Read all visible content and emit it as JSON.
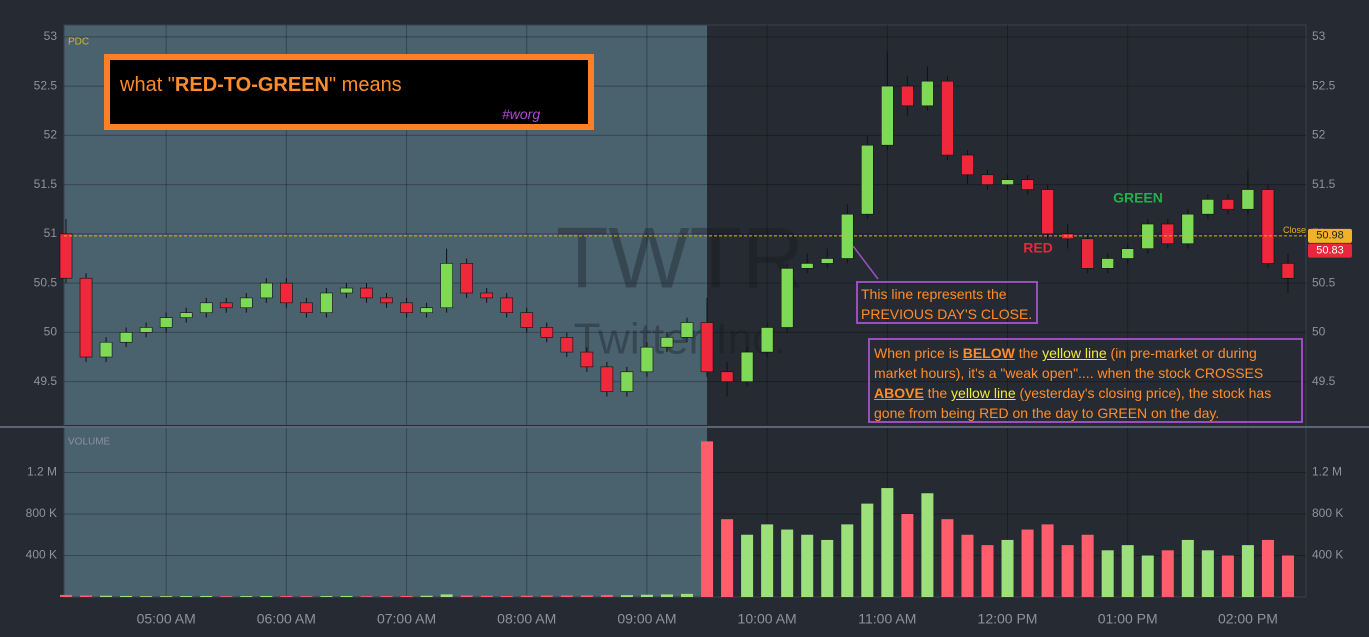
{
  "chart_data": {
    "type": "candlestick",
    "title_prefix": "what \"",
    "title_bold": "RED-TO-GREEN",
    "title_suffix": "\" means",
    "tag": "#worg",
    "watermark_symbol": "TWTR",
    "watermark_name": "Twitter Inc.",
    "price_label": "PDC",
    "volume_label": "VOLUME",
    "xlim": [
      249,
      869
    ],
    "xticks": [
      {
        "value": 300,
        "label": "05:00 AM"
      },
      {
        "value": 360,
        "label": "06:00 AM"
      },
      {
        "value": 420,
        "label": "07:00 AM"
      },
      {
        "value": 480,
        "label": "08:00 AM"
      },
      {
        "value": 540,
        "label": "09:00 AM"
      },
      {
        "value": 600,
        "label": "10:00 AM"
      },
      {
        "value": 660,
        "label": "11:00 AM"
      },
      {
        "value": 720,
        "label": "12:00 PM"
      },
      {
        "value": 780,
        "label": "01:00 PM"
      },
      {
        "value": 840,
        "label": "02:00 PM"
      }
    ],
    "ylim": [
      49.06,
      53.12
    ],
    "yticks": [
      49.5,
      50,
      50.5,
      51,
      51.5,
      52,
      52.5,
      53
    ],
    "grid": true,
    "shaded_until": 570,
    "up_color": "#7ed957",
    "down_color": "#f0283c",
    "candles": {
      "x": [
        250,
        260,
        270,
        280,
        290,
        300,
        310,
        320,
        330,
        340,
        350,
        360,
        370,
        380,
        390,
        400,
        410,
        420,
        430,
        440,
        450,
        460,
        470,
        480,
        490,
        500,
        510,
        520,
        530,
        540,
        550,
        560,
        570,
        580,
        590,
        600,
        610,
        620,
        630,
        640,
        650,
        660,
        670,
        680,
        690,
        700,
        710,
        720,
        730,
        740,
        750,
        760,
        770,
        780,
        790,
        800,
        810,
        820,
        830,
        840,
        850,
        860
      ],
      "open": [
        51.0,
        50.55,
        49.75,
        49.9,
        50.0,
        50.05,
        50.15,
        50.2,
        50.3,
        50.25,
        50.35,
        50.5,
        50.3,
        50.2,
        50.4,
        50.45,
        50.35,
        50.3,
        50.2,
        50.25,
        50.7,
        50.4,
        50.35,
        50.2,
        50.05,
        49.95,
        49.8,
        49.65,
        49.4,
        49.6,
        49.85,
        49.95,
        50.1,
        49.6,
        49.5,
        49.8,
        50.05,
        50.65,
        50.7,
        50.75,
        51.2,
        51.9,
        52.5,
        52.3,
        52.55,
        51.8,
        51.6,
        51.5,
        51.55,
        51.45,
        51.0,
        50.95,
        50.65,
        50.75,
        50.85,
        51.1,
        50.9,
        51.2,
        51.35,
        51.25,
        51.45,
        50.7
      ],
      "high": [
        51.15,
        50.6,
        49.95,
        50.05,
        50.1,
        50.2,
        50.25,
        50.35,
        50.35,
        50.4,
        50.55,
        50.55,
        50.35,
        50.45,
        50.5,
        50.5,
        50.4,
        50.35,
        50.3,
        50.85,
        50.75,
        50.45,
        50.4,
        50.25,
        50.1,
        50.0,
        49.85,
        49.7,
        49.65,
        49.9,
        50.0,
        50.15,
        50.35,
        49.7,
        49.85,
        50.1,
        50.7,
        50.8,
        50.85,
        51.3,
        52.0,
        52.85,
        52.6,
        52.7,
        52.6,
        51.85,
        51.65,
        51.6,
        51.6,
        51.5,
        51.1,
        51.0,
        50.8,
        50.9,
        51.15,
        51.15,
        51.25,
        51.4,
        51.4,
        51.65,
        51.5,
        50.8
      ],
      "low": [
        50.5,
        49.7,
        49.7,
        49.85,
        49.95,
        50.0,
        50.1,
        50.15,
        50.2,
        50.2,
        50.3,
        50.25,
        50.15,
        50.15,
        50.35,
        50.3,
        50.25,
        50.15,
        50.15,
        50.2,
        50.35,
        50.3,
        50.15,
        50.0,
        49.9,
        49.75,
        49.6,
        49.35,
        49.35,
        49.55,
        49.8,
        49.9,
        49.55,
        49.35,
        49.45,
        49.75,
        50.0,
        50.6,
        50.65,
        50.7,
        51.15,
        51.85,
        52.2,
        52.25,
        51.75,
        51.5,
        51.45,
        51.45,
        51.4,
        50.95,
        50.85,
        50.6,
        50.6,
        50.7,
        50.8,
        50.85,
        50.85,
        51.15,
        51.2,
        51.2,
        50.65,
        50.4
      ],
      "close": [
        50.55,
        49.75,
        49.9,
        50.0,
        50.05,
        50.15,
        50.2,
        50.3,
        50.25,
        50.35,
        50.5,
        50.3,
        50.2,
        50.4,
        50.45,
        50.35,
        50.3,
        50.2,
        50.25,
        50.7,
        50.4,
        50.35,
        50.2,
        50.05,
        49.95,
        49.8,
        49.65,
        49.4,
        49.6,
        49.85,
        49.95,
        50.1,
        49.6,
        49.5,
        49.8,
        50.05,
        50.65,
        50.7,
        50.75,
        51.2,
        51.9,
        52.5,
        52.3,
        52.55,
        51.8,
        51.6,
        51.5,
        51.55,
        51.45,
        51.0,
        50.95,
        50.65,
        50.75,
        50.85,
        51.1,
        50.9,
        51.2,
        51.35,
        51.25,
        51.45,
        50.7,
        50.55
      ]
    },
    "volume": {
      "values": [
        20000,
        15000,
        12000,
        10000,
        8000,
        8000,
        9000,
        10000,
        8000,
        9000,
        10000,
        9000,
        8000,
        9000,
        10000,
        8000,
        9000,
        10000,
        12000,
        25000,
        15000,
        12000,
        10000,
        12000,
        14000,
        15000,
        16000,
        20000,
        18000,
        22000,
        25000,
        30000,
        1500000,
        750000,
        600000,
        700000,
        650000,
        600000,
        550000,
        700000,
        900000,
        1050000,
        800000,
        1000000,
        750000,
        600000,
        500000,
        550000,
        650000,
        700000,
        500000,
        600000,
        450000,
        500000,
        400000,
        450000,
        550000,
        450000,
        400000,
        500000,
        550000,
        400000
      ],
      "ylim": [
        0,
        1600000
      ],
      "yticks": [
        {
          "value": 400000,
          "label": "400 K"
        },
        {
          "value": 800000,
          "label": "800 K"
        },
        {
          "value": 1200000,
          "label": "1.2 M"
        }
      ]
    },
    "previous_close": 50.98,
    "previous_close_label": "Close",
    "last_price": 50.83,
    "annotations": {
      "green": "GREEN",
      "red": "RED",
      "note1": [
        "This line represents the",
        "PREVIOUS DAY'S CLOSE."
      ],
      "note2": [
        {
          "text": "When price is ",
          "style": "plain"
        },
        {
          "text": "BELOW",
          "style": "strong"
        },
        {
          "text": " the ",
          "style": "plain"
        },
        {
          "text": "yellow line",
          "style": "yellow"
        },
        {
          "text": " (in pre-market or during market hours), it's a \"weak open\".... when the stock CROSSES ",
          "style": "plain"
        },
        {
          "text": "ABOVE",
          "style": "strong"
        },
        {
          "text": " the ",
          "style": "plain"
        },
        {
          "text": "yellow line",
          "style": "yellow"
        },
        {
          "text": " (yesterday's closing price), the stock has gone from being RED on the day to GREEN on the day.",
          "style": "plain"
        }
      ]
    }
  }
}
